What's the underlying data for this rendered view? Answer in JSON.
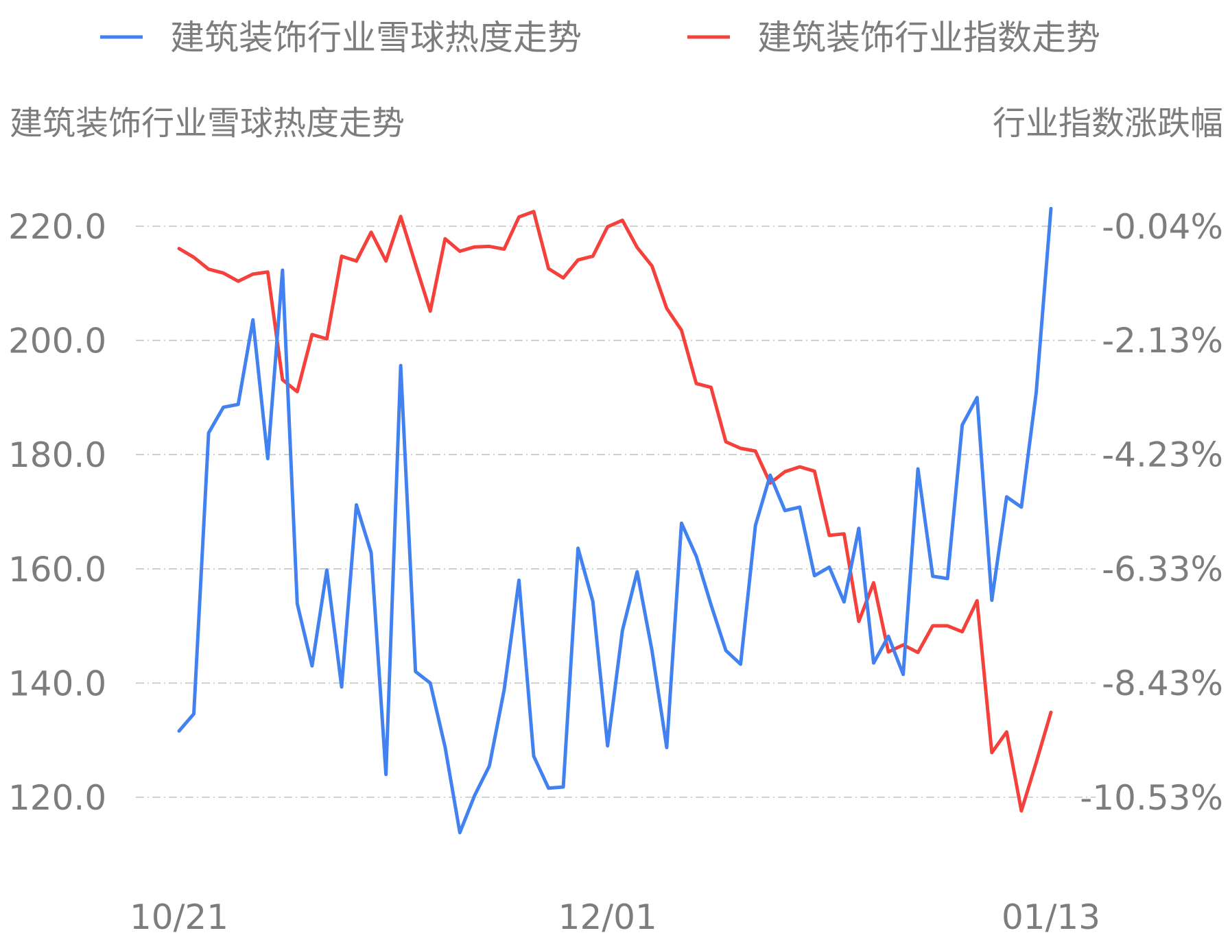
{
  "chart_data": {
    "type": "line",
    "legend": {
      "placement": "top",
      "items": [
        {
          "label": "建筑装饰行业雪球热度走势",
          "color": "#4281f0"
        },
        {
          "label": "建筑装饰行业指数走势",
          "color": "#f5413b"
        }
      ]
    },
    "left_axis_title": "建筑装饰行业雪球热度走势",
    "right_axis_title": "行业指数涨跌幅",
    "y_left": {
      "ticks": [
        120,
        140,
        160,
        180,
        200,
        220
      ],
      "tick_labels": [
        "120.0",
        "140.0",
        "160.0",
        "180.0",
        "200.0",
        "220.0"
      ],
      "range": [
        105,
        235
      ]
    },
    "y_right": {
      "ticks": [
        -10.53,
        -8.43,
        -6.33,
        -4.23,
        -2.13,
        -0.04
      ],
      "tick_labels": [
        "-10.53%",
        "-8.43%",
        "-6.33%",
        "-4.23%",
        "-2.13%",
        "-0.04%"
      ]
    },
    "x_tick_labels": [
      {
        "index": 0,
        "label": "10/21"
      },
      {
        "index": 29,
        "label": "12/01"
      },
      {
        "index": 59,
        "label": "01/13"
      }
    ],
    "grid": true,
    "series": [
      {
        "name": "建筑装饰行业雪球热度走势",
        "color": "#4281f0",
        "axis": "left",
        "values": [
          131.6,
          134.6,
          183.8,
          188.3,
          188.8,
          203.6,
          179.3,
          212.3,
          153.9,
          143.0,
          159.8,
          139.3,
          171.2,
          162.8,
          124.0,
          195.6,
          142.0,
          140.0,
          128.8,
          113.8,
          120.3,
          125.5,
          138.8,
          158.0,
          127.2,
          121.6,
          121.8,
          163.6,
          154.3,
          129.0,
          149.2,
          159.5,
          145.7,
          128.7,
          168.0,
          162.2,
          153.7,
          145.7,
          143.3,
          167.6,
          176.4,
          170.2,
          170.8,
          158.8,
          160.3,
          154.2,
          167.1,
          143.5,
          148.2,
          141.5,
          177.5,
          158.7,
          158.3,
          185.2,
          190.0,
          154.5,
          172.6,
          170.8,
          190.9,
          223.1
        ]
      },
      {
        "name": "建筑装饰行业指数走势",
        "color": "#f5413b",
        "axis": "right",
        "values": [
          -0.45,
          -0.61,
          -0.83,
          -0.9,
          -1.05,
          -0.92,
          -0.88,
          -2.86,
          -3.08,
          -2.03,
          -2.11,
          -0.59,
          -0.68,
          -0.15,
          -0.68,
          0.14,
          -0.74,
          -1.6,
          -0.27,
          -0.5,
          -0.42,
          -0.41,
          -0.46,
          0.13,
          0.23,
          -0.82,
          -0.99,
          -0.66,
          -0.59,
          -0.05,
          0.07,
          -0.43,
          -0.77,
          -1.55,
          -1.95,
          -2.93,
          -3.0,
          -4.0,
          -4.12,
          -4.17,
          -4.76,
          -4.55,
          -4.46,
          -4.54,
          -5.72,
          -5.69,
          -7.3,
          -6.59,
          -7.86,
          -7.73,
          -7.87,
          -7.38,
          -7.38,
          -7.49,
          -6.92,
          -9.71,
          -9.33,
          -10.78,
          -9.89,
          -8.97
        ]
      }
    ]
  }
}
